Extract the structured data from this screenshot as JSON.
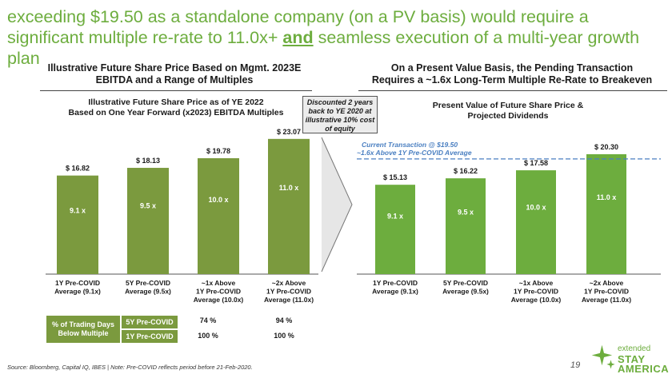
{
  "headline": {
    "part1": "exceeding $19.50 as a standalone company (on a PV basis) would require a significant multiple re-rate to 11.0x+ ",
    "emph": "and",
    "part2": " seamless execution of a multi-year growth plan"
  },
  "left_panel": {
    "title_line1": "Illustrative Future Share Price Based on Mgmt. 2023E",
    "title_line2": "EBITDA and a Range of Multiples",
    "subtitle_line1": "Illustrative Future Share Price as of YE 2022",
    "subtitle_line2": "Based on One Year Forward (x2023) EBITDA Multiples"
  },
  "callout": {
    "line1": "Discounted 2 years",
    "line2": "back to YE 2020 at",
    "line3": "illustrative 10% cost",
    "line4": "of equity"
  },
  "right_panel": {
    "title_line1": "On a Present Value Basis, the Pending Transaction",
    "title_line2": "Requires a ~1.6x Long-Term Multiple Re-Rate to Breakeven",
    "subtitle_line1": "Present Value of Future Share Price &",
    "subtitle_line2": "Projected Dividends"
  },
  "chart_data": [
    {
      "type": "bar",
      "title": "Illustrative Future Share Price as of YE 2022",
      "categories": [
        [
          "1Y Pre-COVID",
          "Average (9.1x)"
        ],
        [
          "5Y Pre-COVID",
          "Average (9.5x)"
        ],
        [
          "~1x Above",
          "1Y Pre-COVID",
          "Average (10.0x)"
        ],
        [
          "~2x Above",
          "1Y Pre-COVID",
          "Average (11.0x)"
        ]
      ],
      "values": [
        16.82,
        18.13,
        19.78,
        23.07
      ],
      "value_labels": [
        "$ 16.82",
        "$ 18.13",
        "$ 19.78",
        "$ 23.07"
      ],
      "inner_labels": [
        "9.1 x",
        "9.5 x",
        "10.0 x",
        "11.0 x"
      ],
      "ylim": [
        0,
        24
      ],
      "bar_color": "#7b9a3e",
      "grid": false
    },
    {
      "type": "bar",
      "title": "Present Value of Future Share Price & Projected Dividends",
      "categories": [
        [
          "1Y Pre-COVID",
          "Average (9.1x)"
        ],
        [
          "5Y Pre-COVID",
          "Average (9.5x)"
        ],
        [
          "~1x Above",
          "1Y Pre-COVID",
          "Average (10.0x)"
        ],
        [
          "~2x Above",
          "1Y Pre-COVID",
          "Average (11.0x)"
        ]
      ],
      "values": [
        15.13,
        16.22,
        17.58,
        20.3
      ],
      "value_labels": [
        "$ 15.13",
        "$ 16.22",
        "$ 17.58",
        "$ 20.30"
      ],
      "inner_labels": [
        "9.1 x",
        "9.5 x",
        "10.0 x",
        "11.0 x"
      ],
      "ylim": [
        0,
        21.11
      ],
      "bar_color": "#6dad3e",
      "grid": false,
      "reference_line": {
        "value": 19.5,
        "label_line1": "Current Transaction @ $19.50",
        "label_line2": "~1.6x Above 1Y Pre-COVID Average",
        "color": "#4a7fc1"
      }
    }
  ],
  "trading_table": {
    "label_line1": "% of Trading Days",
    "label_line2": "Below Multiple",
    "rows": [
      {
        "label": "5Y Pre-COVID",
        "values": [
          "",
          "",
          "74 %",
          "94 %"
        ]
      },
      {
        "label": "1Y Pre-COVID",
        "values": [
          "",
          "",
          "100 %",
          "100 %"
        ]
      }
    ]
  },
  "footer": {
    "source": "Source: Bloomberg, Capital IQ, IBES | Note: Pre-COVID reflects period before 21-Feb-2020.",
    "page": "19"
  },
  "logo": {
    "small": "extended",
    "big1": "STAY",
    "big2": "AMERICA",
    "icon": "star-sparkle-icon"
  }
}
